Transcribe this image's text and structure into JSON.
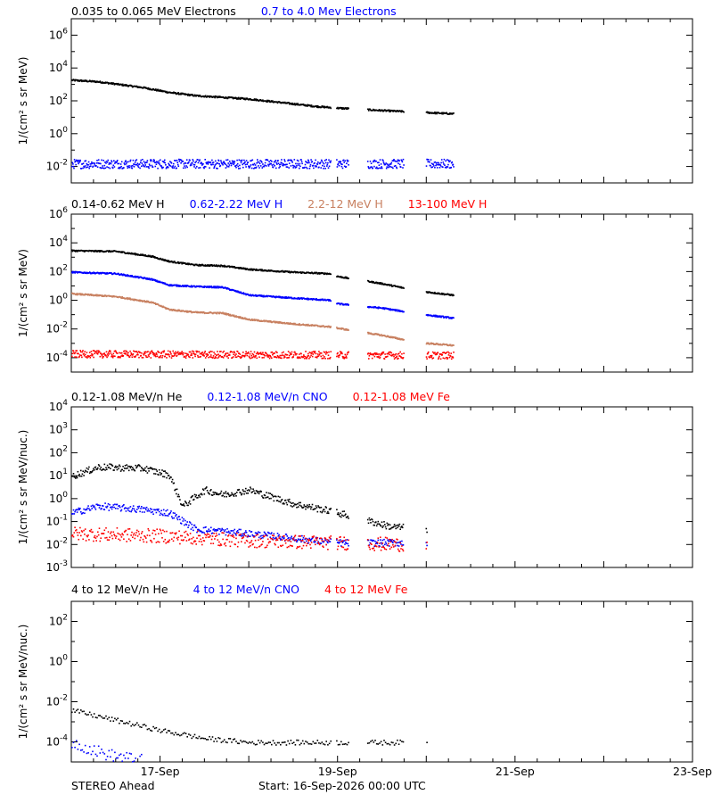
{
  "chart_data": [
    {
      "type": "scatter",
      "ylabel": "1/(cm² s sr MeV)",
      "yscale": "log",
      "ylim_exp": [
        -3,
        7
      ],
      "ytick_exps": [
        -2,
        0,
        2,
        4,
        6
      ],
      "series": [
        {
          "name": "0.035 to 0.065 MeV Electrons",
          "color": "#000000",
          "trend_log": [
            [
              0,
              3.3
            ],
            [
              0.3,
              3.2
            ],
            [
              0.8,
              2.85
            ],
            [
              1.1,
              2.55
            ],
            [
              1.4,
              2.35
            ],
            [
              1.7,
              2.25
            ],
            [
              2.0,
              2.15
            ],
            [
              2.5,
              1.85
            ],
            [
              2.75,
              1.7
            ],
            [
              3.0,
              1.6
            ],
            [
              3.5,
              1.45
            ],
            [
              3.9,
              1.35
            ],
            [
              4.3,
              1.25
            ]
          ],
          "noise": 0.05,
          "density": 3
        },
        {
          "name": "0.7 to 4.0 Mev Electrons",
          "color": "#0000ff",
          "trend_log": [
            [
              0,
              -1.8
            ],
            [
              4.3,
              -1.8
            ]
          ],
          "noise": 0.28,
          "density": 3
        }
      ]
    },
    {
      "type": "scatter",
      "ylabel": "1/(cm² s sr MeV)",
      "yscale": "log",
      "ylim_exp": [
        -5,
        6
      ],
      "ytick_exps": [
        -4,
        -2,
        0,
        2,
        4,
        6
      ],
      "series": [
        {
          "name": "0.14-0.62 MeV H",
          "color": "#000000",
          "trend_log": [
            [
              0,
              3.5
            ],
            [
              0.5,
              3.45
            ],
            [
              0.9,
              3.1
            ],
            [
              1.1,
              2.75
            ],
            [
              1.4,
              2.5
            ],
            [
              1.7,
              2.45
            ],
            [
              2.0,
              2.2
            ],
            [
              2.5,
              2.0
            ],
            [
              2.9,
              1.9
            ],
            [
              3.0,
              1.7
            ],
            [
              3.5,
              1.2
            ],
            [
              3.9,
              0.7
            ],
            [
              4.3,
              0.4
            ]
          ],
          "noise": 0.05,
          "density": 3
        },
        {
          "name": "0.62-2.22 MeV H",
          "color": "#0000ff",
          "trend_log": [
            [
              0,
              2.0
            ],
            [
              0.5,
              1.9
            ],
            [
              0.9,
              1.5
            ],
            [
              1.1,
              1.1
            ],
            [
              1.4,
              1.0
            ],
            [
              1.7,
              0.95
            ],
            [
              2.0,
              0.4
            ],
            [
              2.5,
              0.2
            ],
            [
              2.9,
              0.05
            ],
            [
              3.0,
              -0.2
            ],
            [
              3.5,
              -0.5
            ],
            [
              3.9,
              -0.9
            ],
            [
              4.3,
              -1.2
            ]
          ],
          "noise": 0.05,
          "density": 3
        },
        {
          "name": "2.2-12 MeV H",
          "color": "#c88060",
          "trend_log": [
            [
              0,
              0.5
            ],
            [
              0.5,
              0.3
            ],
            [
              0.9,
              -0.1
            ],
            [
              1.1,
              -0.6
            ],
            [
              1.4,
              -0.8
            ],
            [
              1.7,
              -0.85
            ],
            [
              2.0,
              -1.3
            ],
            [
              2.5,
              -1.6
            ],
            [
              2.9,
              -1.8
            ],
            [
              3.0,
              -1.9
            ],
            [
              3.5,
              -2.4
            ],
            [
              3.9,
              -2.9
            ],
            [
              4.3,
              -3.1
            ]
          ],
          "noise": 0.05,
          "density": 3
        },
        {
          "name": "13-100 MeV H",
          "color": "#ff0000",
          "trend_log": [
            [
              0,
              -3.7
            ],
            [
              4.3,
              -3.8
            ]
          ],
          "noise": 0.25,
          "density": 3
        }
      ]
    },
    {
      "type": "scatter",
      "ylabel": "1/(cm² s sr MeV/nuc.)",
      "yscale": "log",
      "ylim_exp": [
        -3,
        4
      ],
      "ytick_exps": [
        -3,
        -2,
        -1,
        0,
        1,
        2,
        3,
        4
      ],
      "series": [
        {
          "name": "0.12-1.08 MeV/n He",
          "color": "#000000",
          "trend_log": [
            [
              0,
              1.0
            ],
            [
              0.3,
              1.4
            ],
            [
              0.8,
              1.35
            ],
            [
              1.1,
              1.05
            ],
            [
              1.25,
              -0.3
            ],
            [
              1.5,
              0.4
            ],
            [
              1.7,
              0.2
            ],
            [
              2.0,
              0.4
            ],
            [
              2.5,
              -0.2
            ],
            [
              2.9,
              -0.5
            ],
            [
              3.2,
              -0.8
            ],
            [
              3.6,
              -1.2
            ],
            [
              4.0,
              -1.3
            ]
          ],
          "noise": 0.15,
          "density": 2
        },
        {
          "name": "0.12-1.08 MeV/n CNO",
          "color": "#0000ff",
          "trend_log": [
            [
              0,
              -0.6
            ],
            [
              0.3,
              -0.3
            ],
            [
              0.8,
              -0.45
            ],
            [
              1.1,
              -0.6
            ],
            [
              1.4,
              -1.3
            ],
            [
              2.0,
              -1.5
            ],
            [
              3.0,
              -1.9
            ],
            [
              4.0,
              -1.9
            ]
          ],
          "noise": 0.15,
          "density": 2
        },
        {
          "name": "0.12-1.08 MeV Fe",
          "color": "#ff0000",
          "trend_log": [
            [
              0,
              -1.5
            ],
            [
              1.0,
              -1.6
            ],
            [
              2.0,
              -1.8
            ],
            [
              3.0,
              -1.9
            ],
            [
              4.0,
              -2.0
            ]
          ],
          "noise": 0.3,
          "density": 2
        }
      ]
    },
    {
      "type": "scatter",
      "ylabel": "1/(cm² s sr MeV/nuc.)",
      "yscale": "log",
      "ylim_exp": [
        -5,
        3
      ],
      "ytick_exps": [
        -4,
        -2,
        0,
        2
      ],
      "series": [
        {
          "name": "4 to 12 MeV/n He",
          "color": "#000000",
          "trend_log": [
            [
              0,
              -2.4
            ],
            [
              0.4,
              -2.8
            ],
            [
              1.0,
              -3.4
            ],
            [
              1.5,
              -3.8
            ],
            [
              2.0,
              -4.0
            ],
            [
              3.0,
              -4.0
            ],
            [
              4.0,
              -4.0
            ]
          ],
          "noise": 0.12,
          "density": 1
        },
        {
          "name": "4 to 12 MeV/n CNO",
          "color": "#0000ff",
          "trend_log": [
            [
              0,
              -4.0
            ],
            [
              0.4,
              -4.6
            ],
            [
              0.8,
              -4.9
            ]
          ],
          "noise": 0.3,
          "density": 1
        },
        {
          "name": "4 to 12 MeV Fe",
          "color": "#ff0000",
          "trend_log": [],
          "noise": 0,
          "density": 0
        }
      ]
    }
  ],
  "x_axis": {
    "start_day": 16,
    "end_day": 23,
    "tick_labels": [
      "17-Sep",
      "19-Sep",
      "21-Sep",
      "23-Sep"
    ],
    "tick_days_from_start": [
      1,
      3,
      5,
      7
    ],
    "data_gaps_days": [
      [
        2.92,
        2.98
      ],
      [
        3.12,
        3.33
      ],
      [
        3.74,
        3.99
      ],
      [
        4.78,
        4.96
      ],
      [
        6.1,
        7.0
      ]
    ]
  },
  "footer": {
    "spacecraft": "STEREO Ahead",
    "start": "Start: 16-Sep-2026 00:00 UTC"
  }
}
